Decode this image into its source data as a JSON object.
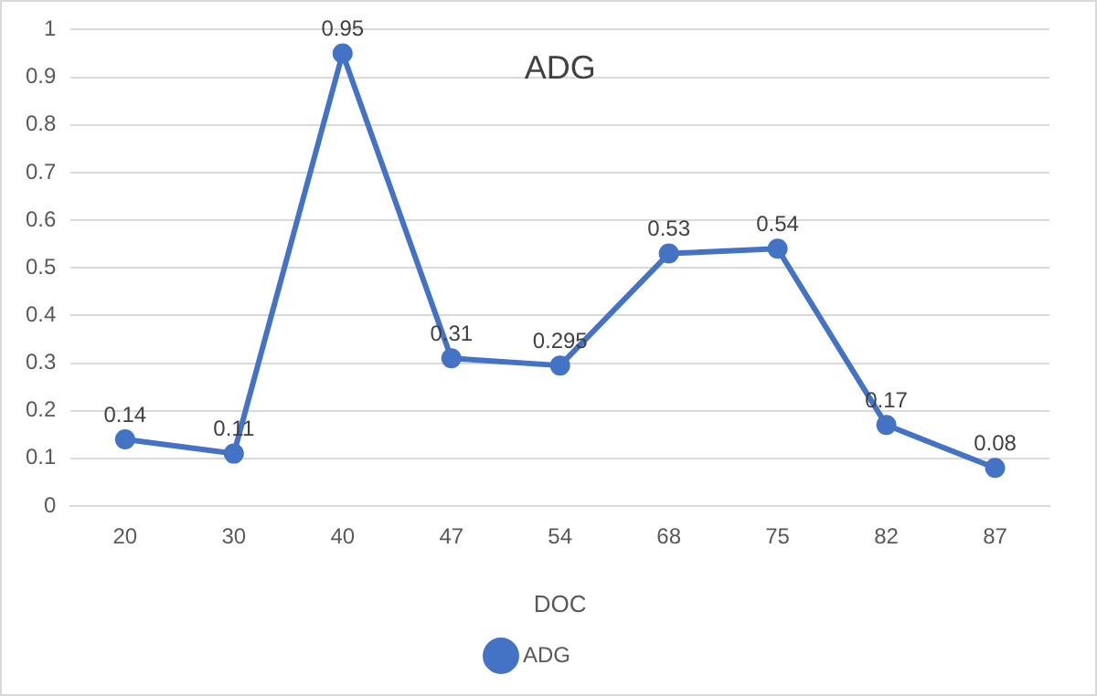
{
  "chart_data": {
    "type": "line",
    "title": "ADG",
    "xlabel": "DOC",
    "categories": [
      "20",
      "30",
      "40",
      "47",
      "54",
      "68",
      "75",
      "82",
      "87"
    ],
    "series": [
      {
        "name": "ADG",
        "color": "#4472c4",
        "values": [
          0.14,
          0.11,
          0.95,
          0.31,
          0.295,
          0.53,
          0.54,
          0.17,
          0.08
        ]
      }
    ],
    "ylim": [
      0,
      1
    ],
    "yticks": [
      0,
      0.1,
      0.2,
      0.3,
      0.4,
      0.5,
      0.6,
      0.7,
      0.8,
      0.9,
      1
    ],
    "grid": "y",
    "legend": "bottom",
    "marker": "circle",
    "line_style": "solid",
    "data_labels": true
  }
}
